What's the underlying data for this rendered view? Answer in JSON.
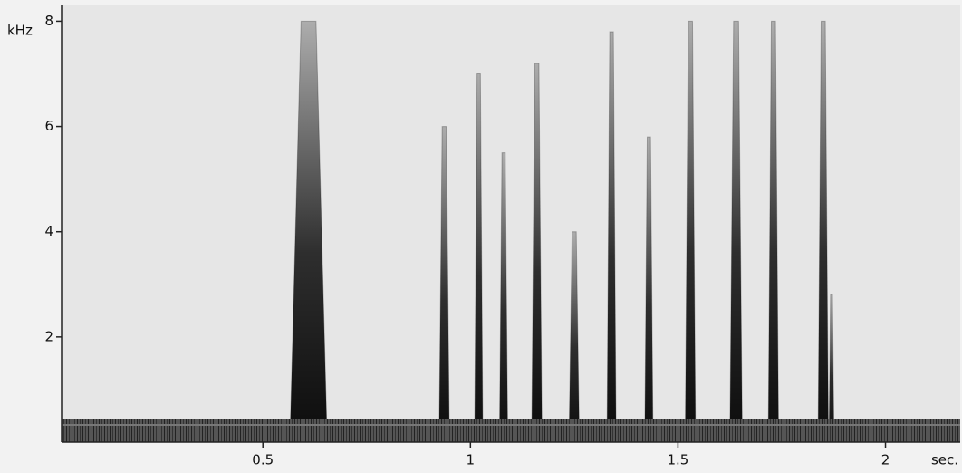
{
  "chart_data": {
    "type": "spectrogram",
    "x_label": "sec.",
    "y_label": "kHz",
    "x": [
      0.61,
      0.937,
      1.02,
      1.08,
      1.16,
      1.25,
      1.34,
      1.43,
      1.53,
      1.64,
      1.73,
      1.85,
      1.87
    ],
    "durations": [
      0.09,
      0.025,
      0.02,
      0.02,
      0.025,
      0.025,
      0.022,
      0.02,
      0.025,
      0.03,
      0.025,
      0.025,
      0.012
    ],
    "values": [
      8,
      6,
      7,
      5.5,
      7.2,
      4,
      7.8,
      5.8,
      8,
      8,
      8,
      8,
      2.8
    ],
    "color": "#1e1e1e",
    "xlim": [
      0.015,
      2.18
    ],
    "ylim": [
      0,
      8.3
    ],
    "xticks": [
      0.5,
      1,
      1.5,
      2
    ],
    "yticks": [
      2,
      4,
      6,
      8
    ]
  }
}
